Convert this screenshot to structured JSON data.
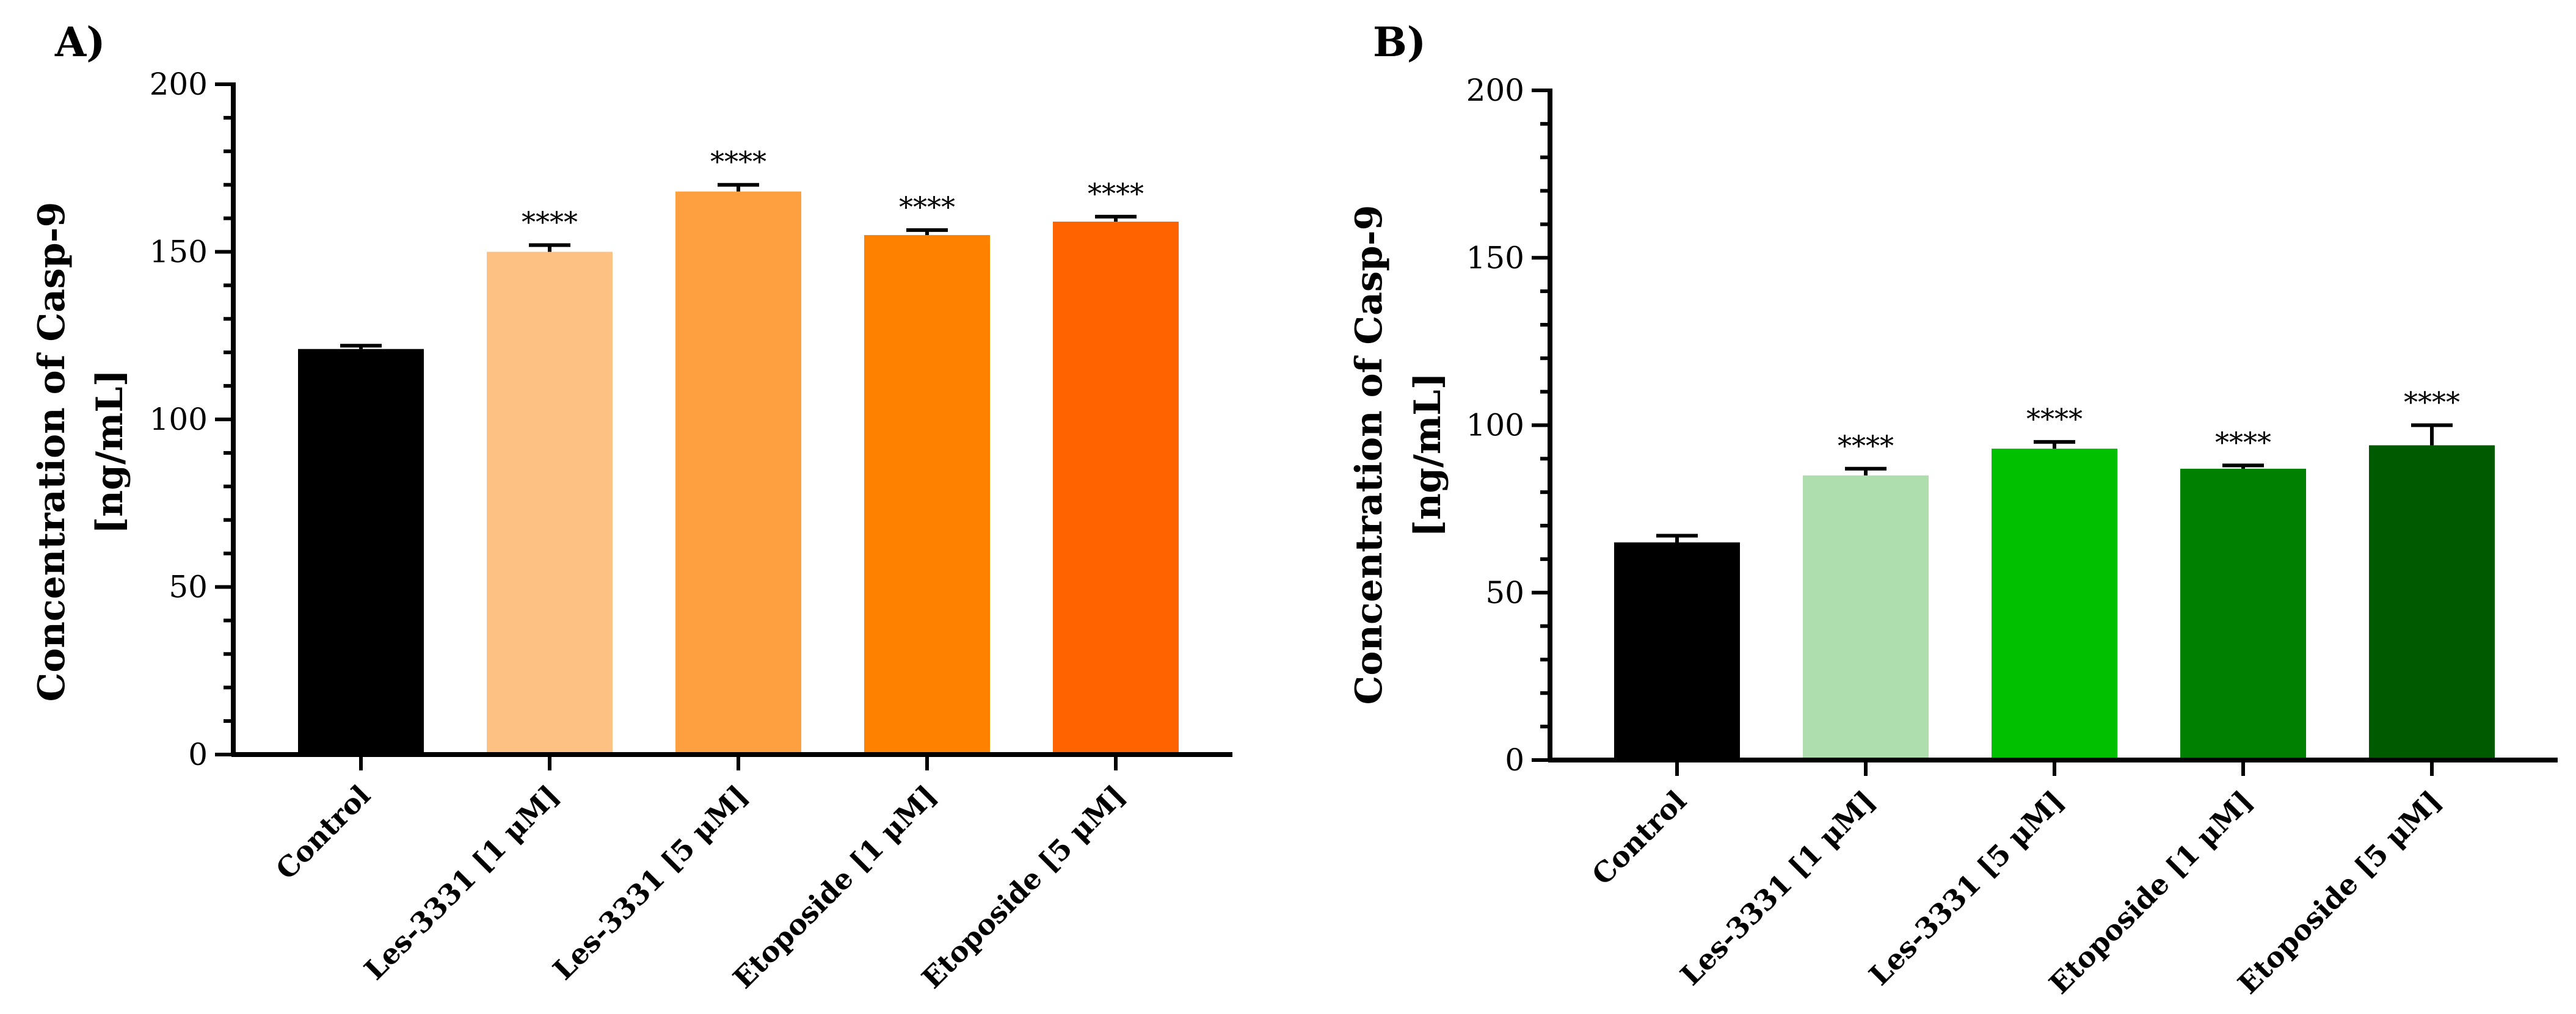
{
  "chart_data": [
    {
      "type": "bar",
      "panel_label": "A)",
      "ylabel": "Concentration of Casp-9",
      "ylabel_unit": "[ng/mL]",
      "xlabel": "",
      "ylim": [
        0,
        200
      ],
      "yticks": [
        0,
        50,
        100,
        150,
        200
      ],
      "categories": [
        "Control",
        "Les-3331 [1 μM]",
        "Les-3331 [5 μM]",
        "Etoposide [1 μM]",
        "Etoposide [5 μM]"
      ],
      "values": [
        121,
        150,
        168,
        155,
        159
      ],
      "errors": [
        1,
        2,
        2,
        1.5,
        1.5
      ],
      "significance": [
        "",
        "****",
        "****",
        "****",
        "****"
      ],
      "colors": [
        "#000000",
        "#fec184",
        "#fe9f40",
        "#fe8100",
        "#fe6300"
      ]
    },
    {
      "type": "bar",
      "panel_label": "B)",
      "ylabel": "Concentration of Casp-9",
      "ylabel_unit": "[ng/mL]",
      "xlabel": "",
      "ylim": [
        0,
        200
      ],
      "yticks": [
        0,
        50,
        100,
        150,
        200
      ],
      "categories": [
        "Control",
        "Les-3331 [1 μM]",
        "Les-3331 [5 μM]",
        "Etoposide [1 μM]",
        "Etoposide [5 μM]"
      ],
      "values": [
        65,
        85,
        93,
        87,
        94
      ],
      "errors": [
        2,
        2,
        2,
        1,
        6
      ],
      "significance": [
        "",
        "****",
        "****",
        "****",
        "****"
      ],
      "colors": [
        "#000000",
        "#aeddae",
        "#00c000",
        "#008000",
        "#005a00"
      ]
    }
  ]
}
